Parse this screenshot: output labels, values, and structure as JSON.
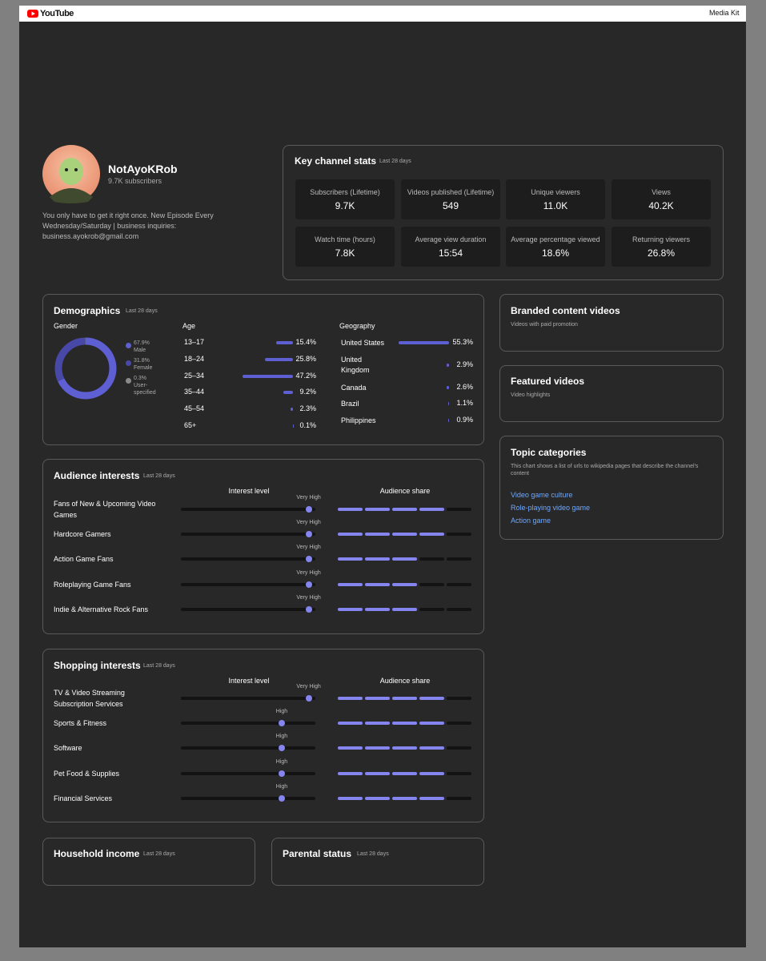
{
  "header": {
    "logo": "YouTube",
    "action": "Media Kit"
  },
  "profile": {
    "name": "NotAyoKRob",
    "subscribers": "9.7K subscribers",
    "description": "You only have to get it right once. New Episode Every Wednesday/Saturday | business inquiries: business.ayokrob@gmail.com"
  },
  "key_stats": {
    "title": "Key channel stats",
    "period": "Last 28 days",
    "stats": [
      {
        "label": "Subscribers (Lifetime)",
        "value": "9.7K"
      },
      {
        "label": "Videos published (Lifetime)",
        "value": "549"
      },
      {
        "label": "Unique viewers",
        "value": "11.0K"
      },
      {
        "label": "Views",
        "value": "40.2K"
      },
      {
        "label": "Watch time (hours)",
        "value": "7.8K"
      },
      {
        "label": "Average view duration",
        "value": "15:54"
      },
      {
        "label": "Average percentage viewed",
        "value": "18.6%"
      },
      {
        "label": "Returning viewers",
        "value": "26.8%"
      }
    ]
  },
  "demographics": {
    "title": "Demographics",
    "period": "Last 28 days",
    "gender": {
      "label": "Gender",
      "items": [
        {
          "value": 67.9,
          "value_label": "67.9%",
          "label": "Male",
          "color": "#5f5fd4"
        },
        {
          "value": 31.8,
          "value_label": "31.8%",
          "label": "Female",
          "color": "#4848a8"
        },
        {
          "value": 0.3,
          "value_label": "0.3%",
          "label": "User-specified",
          "color": "#8a8a8a"
        }
      ]
    },
    "age": {
      "label": "Age",
      "rows": [
        {
          "label": "13–17",
          "value": 15.4,
          "value_label": "15.4%"
        },
        {
          "label": "18–24",
          "value": 25.8,
          "value_label": "25.8%"
        },
        {
          "label": "25–34",
          "value": 47.2,
          "value_label": "47.2%"
        },
        {
          "label": "35–44",
          "value": 9.2,
          "value_label": "9.2%"
        },
        {
          "label": "45–54",
          "value": 2.3,
          "value_label": "2.3%"
        },
        {
          "label": "65+",
          "value": 0.1,
          "value_label": "0.1%"
        }
      ]
    },
    "geography": {
      "label": "Geography",
      "rows": [
        {
          "label": "United States",
          "value": 55.3,
          "value_label": "55.3%"
        },
        {
          "label": "United Kingdom",
          "value": 2.9,
          "value_label": "2.9%"
        },
        {
          "label": "Canada",
          "value": 2.6,
          "value_label": "2.6%"
        },
        {
          "label": "Brazil",
          "value": 1.1,
          "value_label": "1.1%"
        },
        {
          "label": "Philippines",
          "value": 0.9,
          "value_label": "0.9%"
        }
      ]
    }
  },
  "audience_interests": {
    "title": "Audience interests",
    "period": "Last 28 days",
    "columns": [
      "Interest level",
      "Audience share"
    ],
    "rows": [
      {
        "name": "Fans of New & Upcoming Video Games",
        "level": "Very High",
        "level_score": 95,
        "share": 4
      },
      {
        "name": "Hardcore Gamers",
        "level": "Very High",
        "level_score": 95,
        "share": 4
      },
      {
        "name": "Action Game Fans",
        "level": "Very High",
        "level_score": 95,
        "share": 3
      },
      {
        "name": "Roleplaying Game Fans",
        "level": "Very High",
        "level_score": 95,
        "share": 3
      },
      {
        "name": "Indie & Alternative Rock Fans",
        "level": "Very High",
        "level_score": 95,
        "share": 3
      }
    ]
  },
  "shopping_interests": {
    "title": "Shopping interests",
    "period": "Last 28 days",
    "columns": [
      "Interest level",
      "Audience share"
    ],
    "rows": [
      {
        "name": "TV & Video Streaming Subscription Services",
        "level": "Very High",
        "level_score": 95,
        "share": 4
      },
      {
        "name": "Sports & Fitness",
        "level": "High",
        "level_score": 75,
        "share": 4
      },
      {
        "name": "Software",
        "level": "High",
        "level_score": 75,
        "share": 4
      },
      {
        "name": "Pet Food & Supplies",
        "level": "High",
        "level_score": 75,
        "share": 4
      },
      {
        "name": "Financial Services",
        "level": "High",
        "level_score": 75,
        "share": 4
      }
    ]
  },
  "household_income": {
    "title": "Household income",
    "period": "Last 28 days"
  },
  "parental_status": {
    "title": "Parental status",
    "period": "Last 28 days"
  },
  "branded_content": {
    "title": "Branded content videos",
    "subtitle": "Videos with paid promotion"
  },
  "featured_videos": {
    "title": "Featured videos",
    "subtitle": "Video highlights"
  },
  "topic_categories": {
    "title": "Topic categories",
    "description": "This chart shows a list of urls to wikipedia pages that describe the channel's content",
    "links": [
      "Video game culture",
      "Role-playing video game",
      "Action game"
    ]
  }
}
